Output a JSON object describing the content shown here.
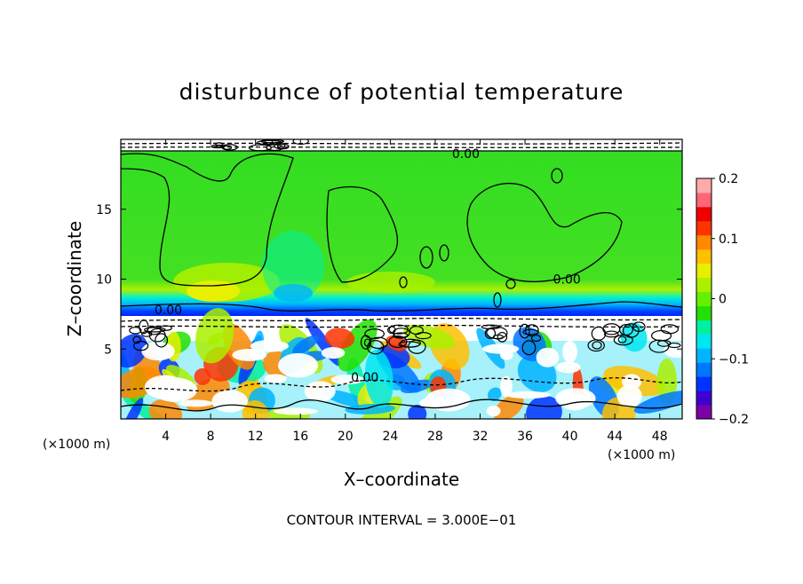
{
  "chart_data": {
    "type": "heatmap",
    "title": "disturbunce of potential temperature",
    "xlabel": "X–coordinate",
    "ylabel": "Z–coordinate",
    "x_unit": "(×1000 m)",
    "y_unit": "(×1000 m)",
    "xlim": [
      0,
      50
    ],
    "ylim": [
      0,
      20
    ],
    "x_ticks": [
      4,
      8,
      12,
      16,
      20,
      24,
      28,
      32,
      36,
      40,
      44,
      48
    ],
    "y_ticks": [
      5,
      10,
      15
    ],
    "colorbar": {
      "min": -0.2,
      "max": 0.2,
      "ticks": [
        0.2,
        0.1,
        0,
        -0.1,
        -0.2
      ],
      "tick_labels": [
        "0.2",
        "0.1",
        "0",
        "−0.1",
        "−0.2"
      ],
      "colors": [
        "#7a00a8",
        "#3d00d0",
        "#0033ff",
        "#0077ff",
        "#00b4ff",
        "#00e6f0",
        "#00f0a0",
        "#22e000",
        "#66f000",
        "#aaf000",
        "#e6f000",
        "#ffc000",
        "#ff8800",
        "#ff3300",
        "#ee0000",
        "#ff6677",
        "#ffaaaa"
      ]
    },
    "contour_labels": [
      {
        "text": "0.00",
        "x": 29.5,
        "z": 19.0
      },
      {
        "text": "0.00",
        "x": 38.5,
        "z": 10.0
      },
      {
        "text": "0.00",
        "x": 3.0,
        "z": 7.8
      },
      {
        "text": "0.00",
        "x": 20.5,
        "z": 3.0
      }
    ],
    "note": "CONTOUR INTERVAL = 3.000E−01"
  }
}
